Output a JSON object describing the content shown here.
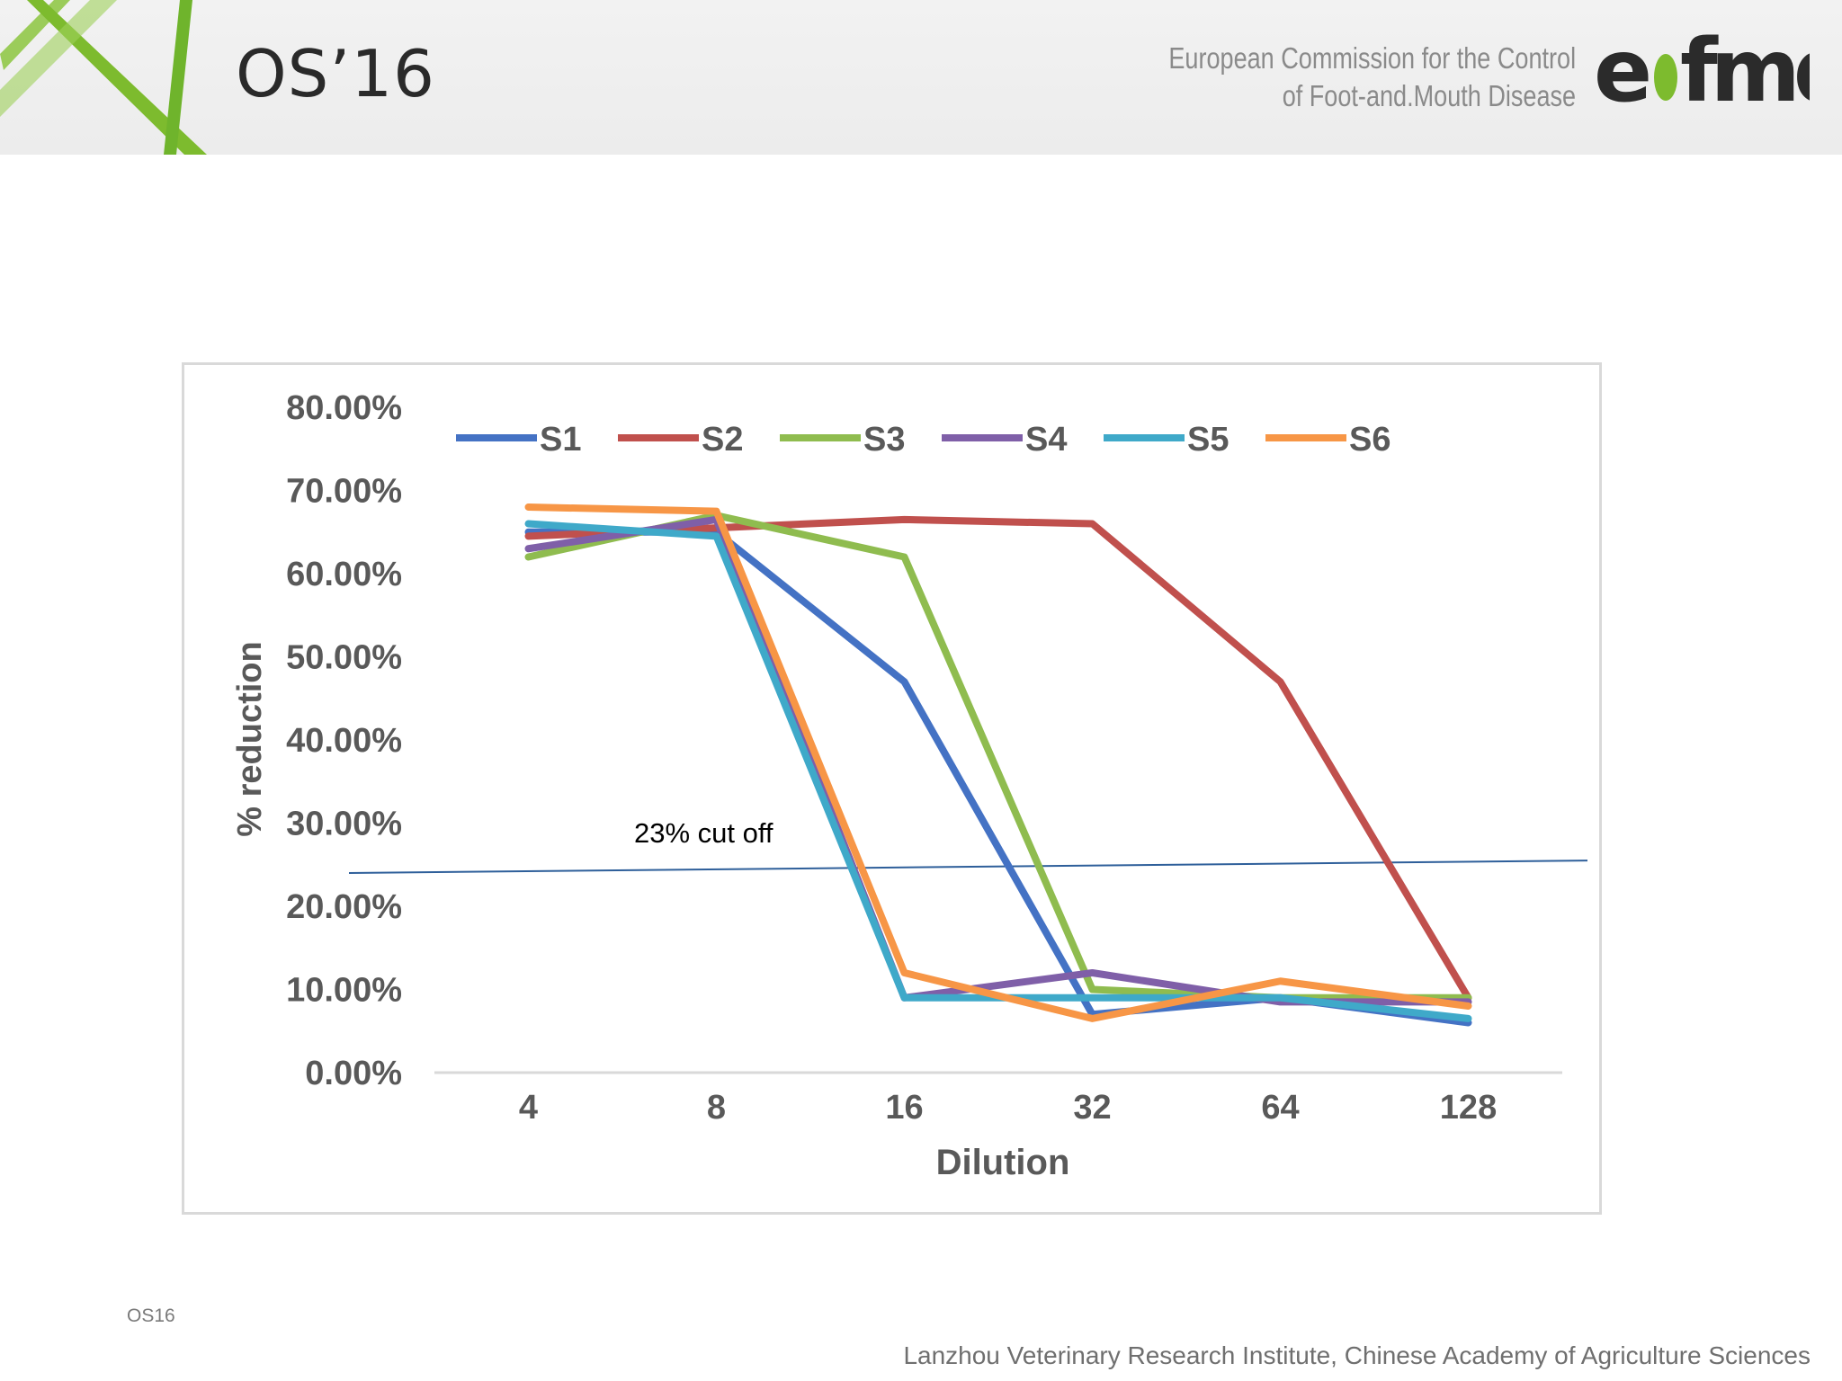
{
  "header": {
    "conference": "OS’16",
    "organization_line1": "European Commission for the Control",
    "organization_line2": "of Foot-and.Mouth Disease",
    "logo_text": "eufmd",
    "accent_green": "#7dbb2e"
  },
  "chart_data": {
    "type": "line",
    "title": "",
    "xlabel": "Dilution",
    "ylabel": "% reduction",
    "categories": [
      "4",
      "8",
      "16",
      "32",
      "64",
      "128"
    ],
    "ylim": [
      0,
      80
    ],
    "yticks": [
      "0.00%",
      "10.00%",
      "20.00%",
      "30.00%",
      "40.00%",
      "50.00%",
      "60.00%",
      "70.00%",
      "80.00%"
    ],
    "grid": false,
    "legend_position": "top",
    "series": [
      {
        "name": "S1",
        "color": "#4472c4",
        "values": [
          65,
          65,
          47,
          7,
          9,
          6
        ]
      },
      {
        "name": "S2",
        "color": "#c0504d",
        "values": [
          64.5,
          65.5,
          66.5,
          66,
          47,
          9
        ]
      },
      {
        "name": "S3",
        "color": "#8fbc4f",
        "values": [
          62,
          67,
          62,
          10,
          9,
          9
        ]
      },
      {
        "name": "S4",
        "color": "#7f5fa8",
        "values": [
          63,
          66.5,
          9,
          12,
          8.5,
          8.5
        ]
      },
      {
        "name": "S5",
        "color": "#3fa9c9",
        "values": [
          66,
          64.5,
          9,
          9,
          9,
          6.5
        ]
      },
      {
        "name": "S6",
        "color": "#f79646",
        "values": [
          68,
          67.5,
          12,
          6.5,
          11,
          8
        ]
      }
    ],
    "annotation": {
      "text": "23% cut off",
      "line_start": {
        "x": "4",
        "y": 24
      },
      "line_end": {
        "x": "128",
        "y": 25.5
      },
      "line_color": "#2e5f9a"
    }
  },
  "footer": {
    "code": "OS16",
    "institution": "Lanzhou Veterinary Research Institute, Chinese Academy of Agriculture Sciences"
  }
}
